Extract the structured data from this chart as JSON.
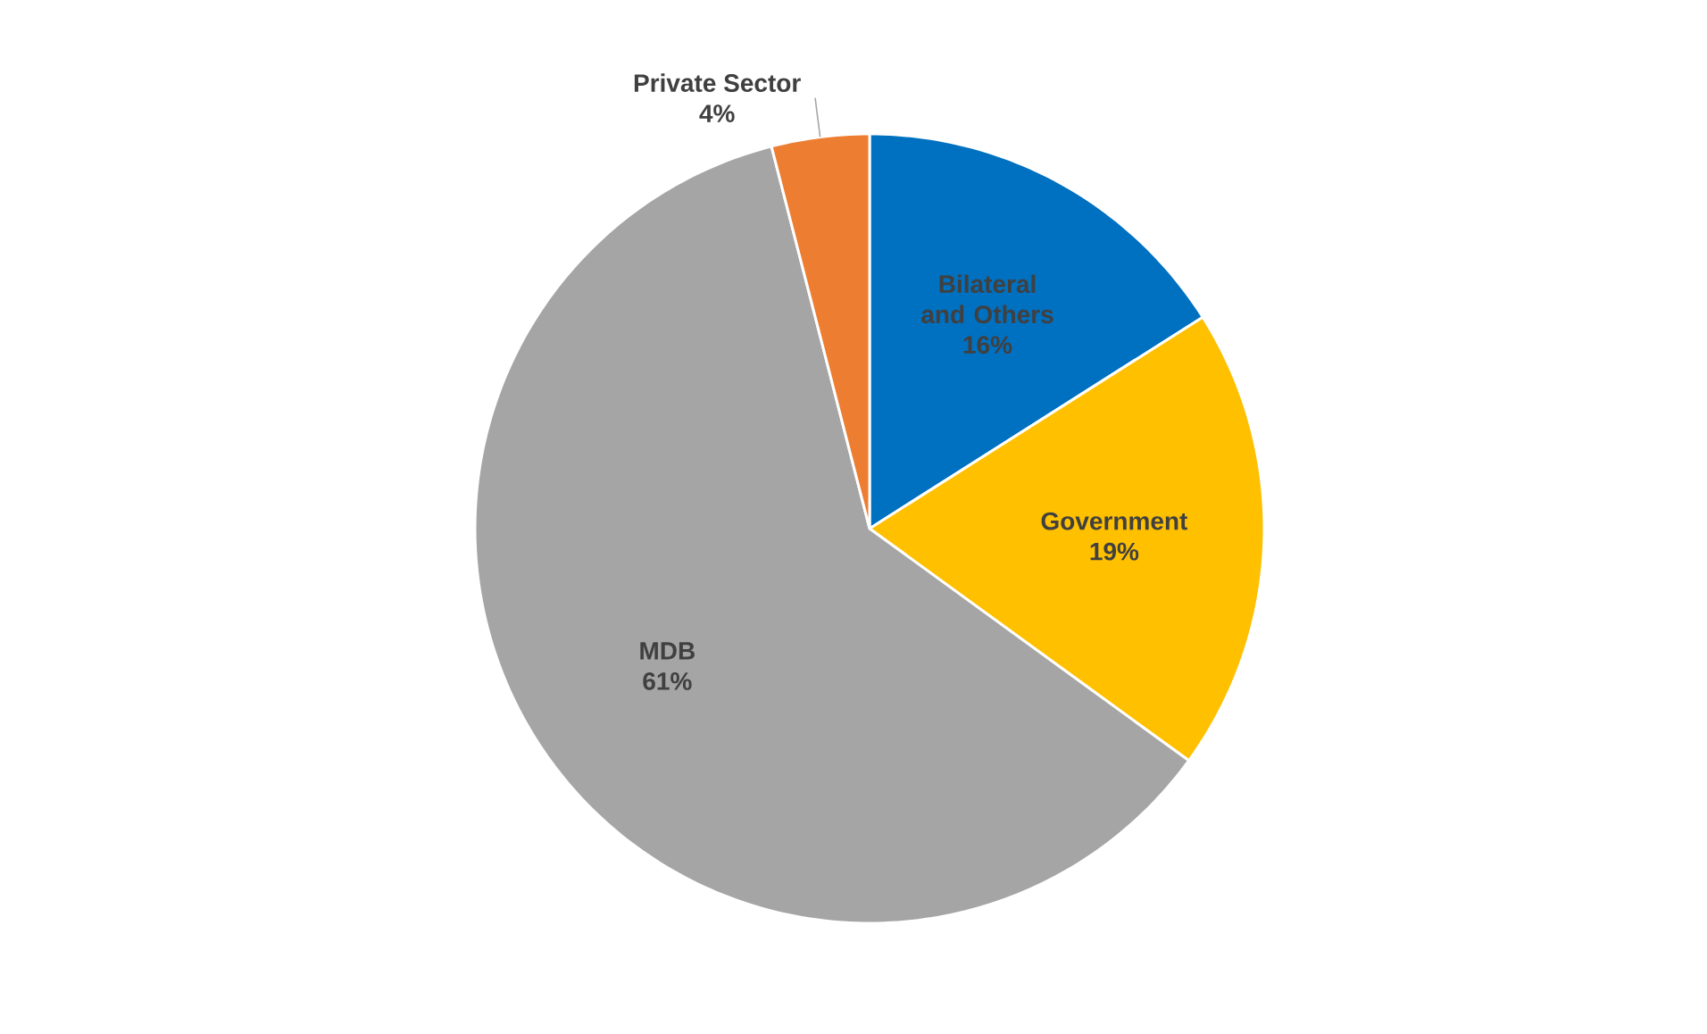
{
  "chart_data": {
    "type": "pie",
    "categories": [
      "Bilateral and Others",
      "Government",
      "MDB",
      "Private Sector"
    ],
    "values": [
      16,
      19,
      61,
      4
    ],
    "value_labels": [
      "16%",
      "19%",
      "61%",
      "4%"
    ],
    "colors": [
      "#0070c0",
      "#ffc000",
      "#a5a5a5",
      "#ed7d31"
    ]
  }
}
